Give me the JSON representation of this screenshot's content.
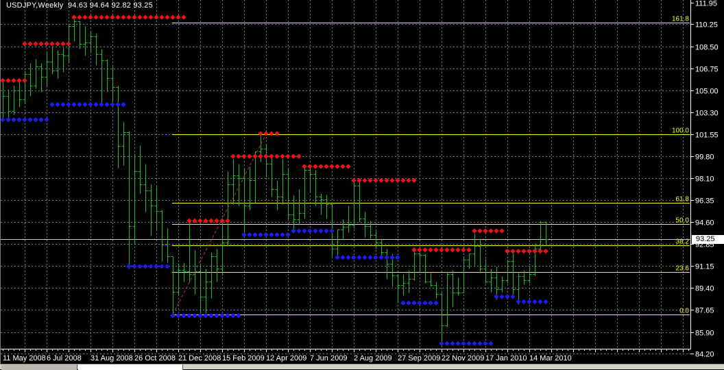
{
  "window": {
    "title_line": "USDJPY,Weekly  94.63 94.64 92.82 93.25"
  },
  "chart_data": {
    "type": "bar",
    "subtype": "ohlc-bars",
    "symbol": "USDJPY",
    "timeframe": "Weekly",
    "current_bar": {
      "open": 94.63,
      "high": 94.64,
      "low": 92.82,
      "close": 93.25
    },
    "y_axis": {
      "labels": [
        "111.95",
        "110.25",
        "108.50",
        "106.75",
        "105.00",
        "103.30",
        "101.55",
        "99.80",
        "98.10",
        "96.35",
        "94.60",
        "92.85",
        "91.15",
        "89.40",
        "87.65",
        "85.90",
        "84.20"
      ],
      "max": 111.95,
      "min": 84.2,
      "current_price": "93.25"
    },
    "x_axis": {
      "labels": [
        "11 May 2008",
        "6 Jul 2008",
        "31 Aug 2008",
        "26 Oct 2008",
        "21 Dec 2008",
        "15 Feb 2009",
        "12 Apr 2009",
        "7 Jun 2009",
        "2 Aug 2009",
        "27 Sep 2009",
        "22 Nov 2009",
        "17 Jan 2010",
        "14 Mar 2010"
      ],
      "weeks_per_label": 8
    },
    "bars_ohlc": [
      [
        103.3,
        105.7,
        102.8,
        104.6
      ],
      [
        104.6,
        105.1,
        102.8,
        103.4
      ],
      [
        103.4,
        105.4,
        103.1,
        105.0
      ],
      [
        105.0,
        105.8,
        103.7,
        104.3
      ],
      [
        104.3,
        106.6,
        104.0,
        106.3
      ],
      [
        106.3,
        107.2,
        104.6,
        105.4
      ],
      [
        105.4,
        107.5,
        105.2,
        106.9
      ],
      [
        106.9,
        107.2,
        104.9,
        106.1
      ],
      [
        106.1,
        108.1,
        105.4,
        107.3
      ],
      [
        107.3,
        108.5,
        106.3,
        106.6
      ],
      [
        106.6,
        108.2,
        106.0,
        107.9
      ],
      [
        107.9,
        108.4,
        106.5,
        107.8
      ],
      [
        107.8,
        110.2,
        107.2,
        110.1
      ],
      [
        110.1,
        110.65,
        108.9,
        110.5
      ],
      [
        110.5,
        110.55,
        108.3,
        108.7
      ],
      [
        108.7,
        110.1,
        107.8,
        108.8
      ],
      [
        108.8,
        109.7,
        108.0,
        109.3
      ],
      [
        109.3,
        109.5,
        107.0,
        107.9
      ],
      [
        107.9,
        108.3,
        103.8,
        107.4
      ],
      [
        107.4,
        107.5,
        104.9,
        106.0
      ],
      [
        106.0,
        106.9,
        103.9,
        105.3
      ],
      [
        105.3,
        105.4,
        98.9,
        100.6
      ],
      [
        100.6,
        102.5,
        99.1,
        101.7
      ],
      [
        101.7,
        101.8,
        90.9,
        94.3
      ],
      [
        94.3,
        99.9,
        92.8,
        98.6
      ],
      [
        98.6,
        100.7,
        96.9,
        97.6
      ],
      [
        97.6,
        99.2,
        95.4,
        97.1
      ],
      [
        97.1,
        97.6,
        93.5,
        95.9
      ],
      [
        95.9,
        97.4,
        94.0,
        95.5
      ],
      [
        95.5,
        95.6,
        91.5,
        92.8
      ],
      [
        92.8,
        94.1,
        91.4,
        91.9
      ],
      [
        91.9,
        91.9,
        87.1,
        89.1
      ],
      [
        89.1,
        91.3,
        88.8,
        90.8
      ],
      [
        90.8,
        91.4,
        89.9,
        90.7
      ],
      [
        90.7,
        94.6,
        89.9,
        90.5
      ],
      [
        90.5,
        92.4,
        88.9,
        90.7
      ],
      [
        90.7,
        91.3,
        87.1,
        88.7
      ],
      [
        88.7,
        90.9,
        87.4,
        89.9
      ],
      [
        89.9,
        92.2,
        88.6,
        91.9
      ],
      [
        91.9,
        92.5,
        89.9,
        90.9
      ],
      [
        90.9,
        94.5,
        90.4,
        93.0
      ],
      [
        93.0,
        98.6,
        92.7,
        97.6
      ],
      [
        97.6,
        99.6,
        96.0,
        98.3
      ],
      [
        98.3,
        99.2,
        95.9,
        98.1
      ],
      [
        98.1,
        98.9,
        93.6,
        95.9
      ],
      [
        95.9,
        99.0,
        95.6,
        97.9
      ],
      [
        97.9,
        100.2,
        96.1,
        100.2
      ],
      [
        100.2,
        101.45,
        99.4,
        100.4
      ],
      [
        100.4,
        100.8,
        98.2,
        99.2
      ],
      [
        99.2,
        99.7,
        96.6,
        97.2
      ],
      [
        97.2,
        97.9,
        95.6,
        96.6
      ],
      [
        96.6,
        99.6,
        96.0,
        98.4
      ],
      [
        98.4,
        98.9,
        94.8,
        95.2
      ],
      [
        95.2,
        96.7,
        93.9,
        94.8
      ],
      [
        94.8,
        97.2,
        94.4,
        95.3
      ],
      [
        95.3,
        98.9,
        94.9,
        98.7
      ],
      [
        98.7,
        99.0,
        97.0,
        98.4
      ],
      [
        98.4,
        98.7,
        95.9,
        96.6
      ],
      [
        96.6,
        96.9,
        95.2,
        96.4
      ],
      [
        96.4,
        96.8,
        94.9,
        96.0
      ],
      [
        96.0,
        96.2,
        91.9,
        92.5
      ],
      [
        92.5,
        94.0,
        91.8,
        94.0
      ],
      [
        94.0,
        94.8,
        93.2,
        94.2
      ],
      [
        94.2,
        95.9,
        93.8,
        94.4
      ],
      [
        94.4,
        97.8,
        94.1,
        97.5
      ],
      [
        97.5,
        97.8,
        94.6,
        94.9
      ],
      [
        94.9,
        95.4,
        93.4,
        94.3
      ],
      [
        94.3,
        94.7,
        93.3,
        93.6
      ],
      [
        93.6,
        93.9,
        92.5,
        93.0
      ],
      [
        93.0,
        93.3,
        91.7,
        92.2
      ],
      [
        92.2,
        92.5,
        90.1,
        91.3
      ],
      [
        91.3,
        92.1,
        89.5,
        90.4
      ],
      [
        90.4,
        90.5,
        88.2,
        89.6
      ],
      [
        89.6,
        90.5,
        88.8,
        89.8
      ],
      [
        89.8,
        90.8,
        89.0,
        90.1
      ],
      [
        90.1,
        92.3,
        90.0,
        92.1
      ],
      [
        92.1,
        92.2,
        90.6,
        92.0
      ],
      [
        92.0,
        92.1,
        89.8,
        89.9
      ],
      [
        89.9,
        90.6,
        89.5,
        89.6
      ],
      [
        89.6,
        89.9,
        88.6,
        88.9
      ],
      [
        88.9,
        89.0,
        84.8,
        86.4
      ],
      [
        86.4,
        90.7,
        86.3,
        90.5
      ],
      [
        90.5,
        90.8,
        87.9,
        89.0
      ],
      [
        89.0,
        90.2,
        88.8,
        89.0
      ],
      [
        89.0,
        91.9,
        89.0,
        91.6
      ],
      [
        91.6,
        92.1,
        90.9,
        92.1
      ],
      [
        92.1,
        93.7,
        91.2,
        92.7
      ],
      [
        92.7,
        93.3,
        90.6,
        90.9
      ],
      [
        90.9,
        91.7,
        89.8,
        89.9
      ],
      [
        89.9,
        90.9,
        89.1,
        90.2
      ],
      [
        90.2,
        91.1,
        88.5,
        89.3
      ],
      [
        89.3,
        90.3,
        89.1,
        90.0
      ],
      [
        90.0,
        91.6,
        89.8,
        91.5
      ],
      [
        91.5,
        92.2,
        88.9,
        89.3
      ],
      [
        89.3,
        90.6,
        88.1,
        90.3
      ],
      [
        90.3,
        90.8,
        89.7,
        90.0
      ],
      [
        90.0,
        91.1,
        89.8,
        90.5
      ],
      [
        90.5,
        92.9,
        90.4,
        92.5
      ],
      [
        92.5,
        94.7,
        92.3,
        94.6
      ],
      [
        94.63,
        94.64,
        92.82,
        93.25
      ]
    ],
    "resistance_dot_segments": [
      {
        "from": 0,
        "to": 4,
        "price": 105.8
      },
      {
        "from": 4,
        "to": 12,
        "price": 108.7
      },
      {
        "from": 13,
        "to": 33,
        "price": 110.8
      },
      {
        "from": 34,
        "to": 41,
        "price": 94.7
      },
      {
        "from": 42,
        "to": 54,
        "price": 99.8
      },
      {
        "from": 47,
        "to": 50,
        "price": 101.6
      },
      {
        "from": 55,
        "to": 63,
        "price": 99.0
      },
      {
        "from": 64,
        "to": 75,
        "price": 97.9
      },
      {
        "from": 75,
        "to": 85,
        "price": 92.4
      },
      {
        "from": 86,
        "to": 91,
        "price": 93.9
      },
      {
        "from": 92,
        "to": 99,
        "price": 92.3
      }
    ],
    "support_dot_segments": [
      {
        "from": 0,
        "to": 8,
        "price": 102.7
      },
      {
        "from": 9,
        "to": 22,
        "price": 103.9
      },
      {
        "from": 23,
        "to": 30,
        "price": 91.1
      },
      {
        "from": 31,
        "to": 43,
        "price": 87.2
      },
      {
        "from": 44,
        "to": 52,
        "price": 93.6
      },
      {
        "from": 53,
        "to": 60,
        "price": 93.9
      },
      {
        "from": 61,
        "to": 72,
        "price": 91.8
      },
      {
        "from": 73,
        "to": 79,
        "price": 88.2
      },
      {
        "from": 80,
        "to": 89,
        "price": 85.0
      },
      {
        "from": 90,
        "to": 93,
        "price": 88.7
      },
      {
        "from": 94,
        "to": 99,
        "price": 88.3
      }
    ],
    "fibonacci": {
      "levels": [
        {
          "label": "161.8",
          "price": 110.36
        },
        {
          "label": "100.0",
          "price": 101.55
        },
        {
          "label": "61.8",
          "price": 96.11
        },
        {
          "label": "50.0",
          "price": 94.43
        },
        {
          "label": "38.2",
          "price": 92.74
        },
        {
          "label": "23.6",
          "price": 90.66
        },
        {
          "label": "0.0",
          "price": 87.3
        }
      ],
      "trendline": {
        "from_bar": 31,
        "from_price": 87.3,
        "to_bar": 48,
        "to_price": 101.55
      }
    },
    "bid_line_price": 93.25,
    "legend_position": "none",
    "grid": true,
    "colors": {
      "background": "#000000",
      "grid": "#6f7b8c",
      "bars": "#00cc00",
      "resistance_dots": "#f01212",
      "support_dots": "#1c1cf0",
      "fib_lines": "#ffff00",
      "fib_trendline": "#cc2a2a",
      "bid_line": "#c8c8c8",
      "axis": "#ffffff",
      "price_badge_bg": "#ffffff",
      "price_badge_text": "#000000"
    }
  }
}
